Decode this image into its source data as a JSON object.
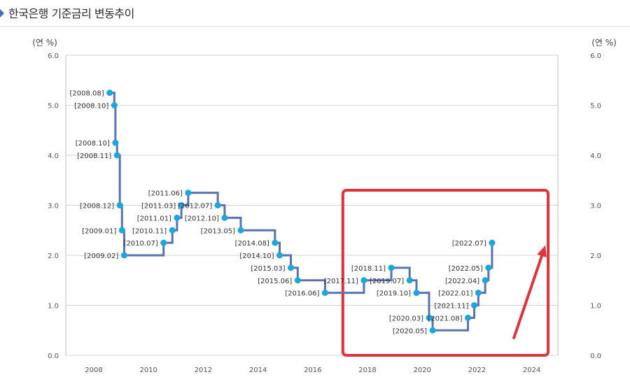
{
  "header": {
    "title": "한국은행 기준금리 변동추이"
  },
  "colors": {
    "line": "#5a72b0",
    "point": "#1ba6dd",
    "grid": "#d4d4d4",
    "highlight": "#e0333d",
    "title_marker": "#4a6ac7"
  },
  "chart_data": {
    "type": "line",
    "step": true,
    "title": "한국은행 기준금리 변동추이",
    "ylabel_left": "(연 %)",
    "ylabel_right": "(연 %)",
    "xlim": [
      2007,
      2025
    ],
    "ylim": [
      0,
      6
    ],
    "grid": true,
    "x_ticks": [
      "2008",
      "2010",
      "2012",
      "2014",
      "2016",
      "2018",
      "2020",
      "2022",
      "2024"
    ],
    "y_ticks": [
      "0.0",
      "1.0",
      "2.0",
      "3.0",
      "4.0",
      "5.0",
      "6.0"
    ],
    "points": [
      {
        "label": "[2008.08]",
        "x": 2008.58,
        "y": 5.25
      },
      {
        "label": "[2008.10]",
        "x": 2008.75,
        "y": 5.0
      },
      {
        "label": "[2008.10]",
        "x": 2008.79,
        "y": 4.25
      },
      {
        "label": "[2008.11]",
        "x": 2008.85,
        "y": 4.0
      },
      {
        "label": "[2008.12]",
        "x": 2008.95,
        "y": 3.0
      },
      {
        "label": "[2009.01]",
        "x": 2009.03,
        "y": 2.5
      },
      {
        "label": "[2009.02]",
        "x": 2009.11,
        "y": 2.0
      },
      {
        "label": "[2010.07]",
        "x": 2010.55,
        "y": 2.25
      },
      {
        "label": "[2010.11]",
        "x": 2010.87,
        "y": 2.5
      },
      {
        "label": "[2011.01]",
        "x": 2011.04,
        "y": 2.75
      },
      {
        "label": "[2011.03]",
        "x": 2011.2,
        "y": 3.0
      },
      {
        "label": "[2011.06]",
        "x": 2011.45,
        "y": 3.25
      },
      {
        "label": "[2012.07]",
        "x": 2012.53,
        "y": 3.0
      },
      {
        "label": "[2012.10]",
        "x": 2012.78,
        "y": 2.75
      },
      {
        "label": "[2013.05]",
        "x": 2013.37,
        "y": 2.5
      },
      {
        "label": "[2014.08]",
        "x": 2014.62,
        "y": 2.25
      },
      {
        "label": "[2014.10]",
        "x": 2014.79,
        "y": 2.0
      },
      {
        "label": "[2015.03]",
        "x": 2015.2,
        "y": 1.75
      },
      {
        "label": "[2015.06]",
        "x": 2015.45,
        "y": 1.5
      },
      {
        "label": "[2016.06]",
        "x": 2016.45,
        "y": 1.25
      },
      {
        "label": "[2017.11]",
        "x": 2017.87,
        "y": 1.5
      },
      {
        "label": "[2018.11]",
        "x": 2018.87,
        "y": 1.75
      },
      {
        "label": "[2019.07]",
        "x": 2019.54,
        "y": 1.5
      },
      {
        "label": "[2019.10]",
        "x": 2019.79,
        "y": 1.25
      },
      {
        "label": "[2020.03]",
        "x": 2020.25,
        "y": 0.75
      },
      {
        "label": "[2020.05]",
        "x": 2020.38,
        "y": 0.5
      },
      {
        "label": "[2021.08]",
        "x": 2021.67,
        "y": 0.75
      },
      {
        "label": "[2021.11]",
        "x": 2021.9,
        "y": 1.0
      },
      {
        "label": "[2022.01]",
        "x": 2022.05,
        "y": 1.25
      },
      {
        "label": "[2022.04]",
        "x": 2022.3,
        "y": 1.5
      },
      {
        "label": "[2022.05]",
        "x": 2022.42,
        "y": 1.75
      },
      {
        "label": "[2022.07]",
        "x": 2022.55,
        "y": 2.25
      }
    ],
    "highlight_box": {
      "x_range": [
        2017.1,
        2024.6
      ],
      "y_range": [
        0,
        3.3
      ]
    },
    "arrow": {
      "from": [
        2023.35,
        0.35
      ],
      "to": [
        2024.5,
        2.2
      ]
    }
  }
}
